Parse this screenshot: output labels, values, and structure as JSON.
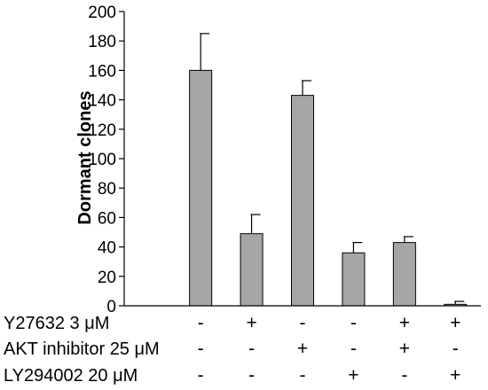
{
  "chart_data": {
    "type": "bar",
    "ylabel": "Dormant clones",
    "ylim": [
      0,
      200
    ],
    "yticks": [
      0,
      20,
      40,
      60,
      80,
      100,
      120,
      140,
      160,
      180,
      200
    ],
    "values": [
      0,
      160,
      49,
      143,
      36,
      43,
      1
    ],
    "errors": [
      0,
      25,
      13,
      10,
      7,
      4,
      2
    ],
    "bar_color": "#a6a6a6",
    "conditions": [
      {
        "label": "Y27632  3 μM",
        "marks": [
          "-",
          "-",
          "+",
          "-",
          "-",
          "+",
          "+"
        ]
      },
      {
        "label": "AKT inhibitor 25 μM",
        "marks": [
          "-",
          "-",
          "-",
          "+",
          "-",
          "+",
          "-"
        ]
      },
      {
        "label": "LY294002  20 μM",
        "marks": [
          "-",
          "-",
          "-",
          "-",
          "+",
          "-",
          "+"
        ]
      }
    ]
  }
}
